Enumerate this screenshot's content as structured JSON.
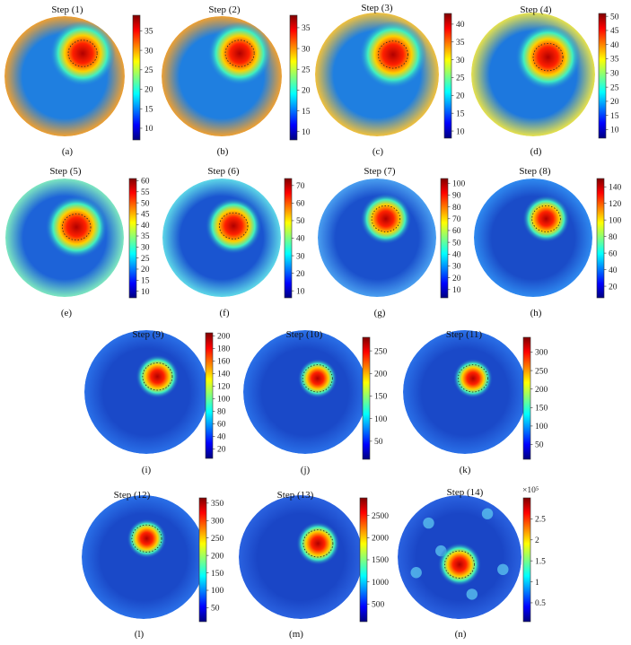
{
  "figure": {
    "panels": [
      {
        "id": "a",
        "title": "Step (1)",
        "caption": "(a)",
        "ticks": [
          "10",
          "15",
          "20",
          "25",
          "30",
          "35"
        ]
      },
      {
        "id": "b",
        "title": "Step (2)",
        "caption": "(b)",
        "ticks": [
          "10",
          "15",
          "20",
          "25",
          "30",
          "35"
        ]
      },
      {
        "id": "c",
        "title": "Step (3)",
        "caption": "(c)",
        "ticks": [
          "10",
          "15",
          "20",
          "25",
          "30",
          "35",
          "40"
        ]
      },
      {
        "id": "d",
        "title": "Step (4)",
        "caption": "(d)",
        "ticks": [
          "10",
          "15",
          "20",
          "25",
          "30",
          "35",
          "40",
          "45",
          "50"
        ]
      },
      {
        "id": "e",
        "title": "Step (5)",
        "caption": "(e)",
        "ticks": [
          "10",
          "15",
          "20",
          "25",
          "30",
          "35",
          "40",
          "45",
          "50",
          "55",
          "60"
        ]
      },
      {
        "id": "f",
        "title": "Step (6)",
        "caption": "(f)",
        "ticks": [
          "10",
          "20",
          "30",
          "40",
          "50",
          "60",
          "70"
        ]
      },
      {
        "id": "g",
        "title": "Step (7)",
        "caption": "(g)",
        "ticks": [
          "10",
          "20",
          "30",
          "40",
          "50",
          "60",
          "70",
          "80",
          "90",
          "100"
        ]
      },
      {
        "id": "h",
        "title": "Step (8)",
        "caption": "(h)",
        "ticks": [
          "20",
          "40",
          "60",
          "80",
          "100",
          "120",
          "140"
        ]
      },
      {
        "id": "i",
        "title": "Step (9)",
        "caption": "(i)",
        "ticks": [
          "20",
          "40",
          "60",
          "80",
          "100",
          "120",
          "140",
          "160",
          "180",
          "200"
        ]
      },
      {
        "id": "j",
        "title": "Step (10)",
        "caption": "(j)",
        "ticks": [
          "50",
          "100",
          "150",
          "200",
          "250"
        ]
      },
      {
        "id": "k",
        "title": "Step (11)",
        "caption": "(k)",
        "ticks": [
          "50",
          "100",
          "150",
          "200",
          "250",
          "300"
        ]
      },
      {
        "id": "l",
        "title": "Step (12)",
        "caption": "(l)",
        "ticks": [
          "50",
          "100",
          "150",
          "200",
          "250",
          "300",
          "350"
        ]
      },
      {
        "id": "m",
        "title": "Step (13)",
        "caption": "(m)",
        "ticks": [
          "500",
          "1000",
          "1500",
          "2000",
          "2500"
        ]
      },
      {
        "id": "n",
        "title": "Step (14)",
        "caption": "(n)",
        "ticks": [
          "0.5",
          "1",
          "1.5",
          "2",
          "2.5"
        ],
        "multiplier": "×10⁵"
      }
    ]
  },
  "chart_data": [
    {
      "type": "heatmap",
      "title": "Step (1)",
      "clim": [
        7,
        39
      ],
      "ticks": [
        10,
        15,
        20,
        25,
        30,
        35
      ]
    },
    {
      "type": "heatmap",
      "title": "Step (2)",
      "clim": [
        8,
        38
      ],
      "ticks": [
        10,
        15,
        20,
        25,
        30,
        35
      ]
    },
    {
      "type": "heatmap",
      "title": "Step (3)",
      "clim": [
        8,
        43
      ],
      "ticks": [
        10,
        15,
        20,
        25,
        30,
        35,
        40
      ]
    },
    {
      "type": "heatmap",
      "title": "Step (4)",
      "clim": [
        7,
        51
      ],
      "ticks": [
        10,
        15,
        20,
        25,
        30,
        35,
        40,
        45,
        50
      ]
    },
    {
      "type": "heatmap",
      "title": "Step (5)",
      "clim": [
        7,
        61
      ],
      "ticks": [
        10,
        15,
        20,
        25,
        30,
        35,
        40,
        45,
        50,
        55,
        60
      ]
    },
    {
      "type": "heatmap",
      "title": "Step (6)",
      "clim": [
        6,
        74
      ],
      "ticks": [
        10,
        20,
        30,
        40,
        50,
        60,
        70
      ]
    },
    {
      "type": "heatmap",
      "title": "Step (7)",
      "clim": [
        3,
        104
      ],
      "ticks": [
        10,
        20,
        30,
        40,
        50,
        60,
        70,
        80,
        90,
        100
      ]
    },
    {
      "type": "heatmap",
      "title": "Step (8)",
      "clim": [
        6,
        150
      ],
      "ticks": [
        20,
        40,
        60,
        80,
        100,
        120,
        140
      ]
    },
    {
      "type": "heatmap",
      "title": "Step (9)",
      "clim": [
        5,
        205
      ],
      "ticks": [
        20,
        40,
        60,
        80,
        100,
        120,
        140,
        160,
        180,
        200
      ]
    },
    {
      "type": "heatmap",
      "title": "Step (10)",
      "clim": [
        10,
        280
      ],
      "ticks": [
        50,
        100,
        150,
        200,
        250
      ]
    },
    {
      "type": "heatmap",
      "title": "Step (11)",
      "clim": [
        10,
        340
      ],
      "ticks": [
        50,
        100,
        150,
        200,
        250,
        300
      ]
    },
    {
      "type": "heatmap",
      "title": "Step (12)",
      "clim": [
        10,
        365
      ],
      "ticks": [
        50,
        100,
        150,
        200,
        250,
        300,
        350
      ]
    },
    {
      "type": "heatmap",
      "title": "Step (13)",
      "clim": [
        100,
        2900
      ],
      "ticks": [
        500,
        1000,
        1500,
        2000,
        2500
      ]
    },
    {
      "type": "heatmap",
      "title": "Step (14)",
      "clim": [
        0.05,
        3.0
      ],
      "ticks": [
        0.5,
        1,
        1.5,
        2,
        2.5
      ]
    }
  ]
}
